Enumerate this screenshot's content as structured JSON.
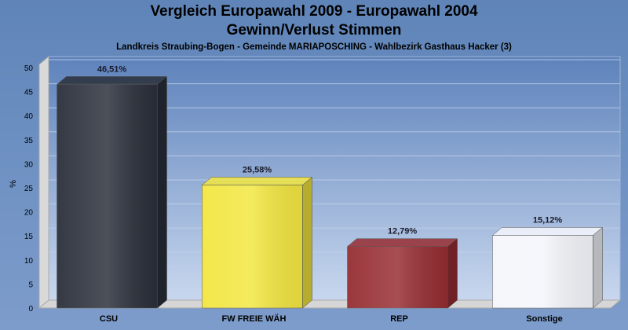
{
  "header": {
    "title_line1": "Vergleich Europawahl 2009 - Europawahl 2004",
    "title_line2": "Gewinn/Verlust Stimmen",
    "subtitle": "Landkreis Straubing-Bogen - Gemeinde MARIAPOSCHING - Wahlbezirk Gasthaus Hacker (3)"
  },
  "chart_data": {
    "type": "bar",
    "title": "Vergleich Europawahl 2009 - Europawahl 2004 / Gewinn/Verlust Stimmen",
    "subtitle": "Landkreis Straubing-Bogen - Gemeinde MARIAPOSCHING - Wahlbezirk Gasthaus Hacker (3)",
    "xlabel": "",
    "ylabel": "%",
    "ylim": [
      0,
      50
    ],
    "yticks": [
      0,
      5,
      10,
      15,
      20,
      25,
      30,
      35,
      40,
      45,
      50
    ],
    "grid": true,
    "categories": [
      "CSU",
      "FW FREIE WÄH",
      "REP",
      "Sonstige"
    ],
    "values": [
      46.51,
      25.58,
      12.79,
      15.12
    ],
    "value_labels": [
      "46,51%",
      "25,58%",
      "12,79%",
      "15,12%"
    ],
    "colors": [
      "#2a2f3a",
      "#f2e640",
      "#962d32",
      "#f4f6fb"
    ]
  }
}
